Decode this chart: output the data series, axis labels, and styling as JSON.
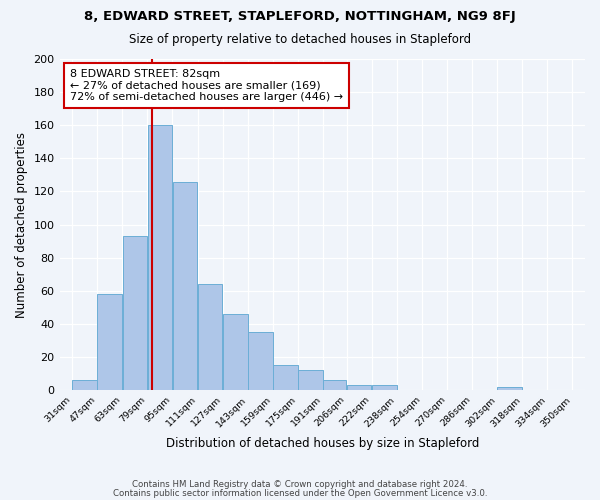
{
  "title": "8, EDWARD STREET, STAPLEFORD, NOTTINGHAM, NG9 8FJ",
  "subtitle": "Size of property relative to detached houses in Stapleford",
  "xlabel": "Distribution of detached houses by size in Stapleford",
  "ylabel": "Number of detached properties",
  "bar_values": [
    6,
    58,
    93,
    160,
    126,
    64,
    46,
    35,
    15,
    12,
    6,
    3,
    3,
    0,
    0,
    0,
    0,
    2,
    0,
    0
  ],
  "x_tick_labels": [
    "31sqm",
    "47sqm",
    "63sqm",
    "79sqm",
    "95sqm",
    "111sqm",
    "127sqm",
    "143sqm",
    "159sqm",
    "175sqm",
    "191sqm",
    "206sqm",
    "222sqm",
    "238sqm",
    "254sqm",
    "270sqm",
    "286sqm",
    "302sqm",
    "318sqm",
    "334sqm",
    "350sqm"
  ],
  "bar_color": "#aec6e8",
  "bar_edge_color": "#6baed6",
  "vline_x": 82,
  "vline_color": "#cc0000",
  "annotation_title": "8 EDWARD STREET: 82sqm",
  "annotation_line1": "← 27% of detached houses are smaller (169)",
  "annotation_line2": "72% of semi-detached houses are larger (446) →",
  "annotation_box_color": "#cc0000",
  "ylim": [
    0,
    200
  ],
  "yticks": [
    0,
    20,
    40,
    60,
    80,
    100,
    120,
    140,
    160,
    180,
    200
  ],
  "footer_line1": "Contains HM Land Registry data © Crown copyright and database right 2024.",
  "footer_line2": "Contains public sector information licensed under the Open Government Licence v3.0.",
  "bg_color": "#f0f4fa",
  "bin_edges": [
    31,
    47,
    63,
    79,
    95,
    111,
    127,
    143,
    159,
    175,
    191,
    206,
    222,
    238,
    254,
    270,
    286,
    302,
    318,
    334,
    350
  ]
}
